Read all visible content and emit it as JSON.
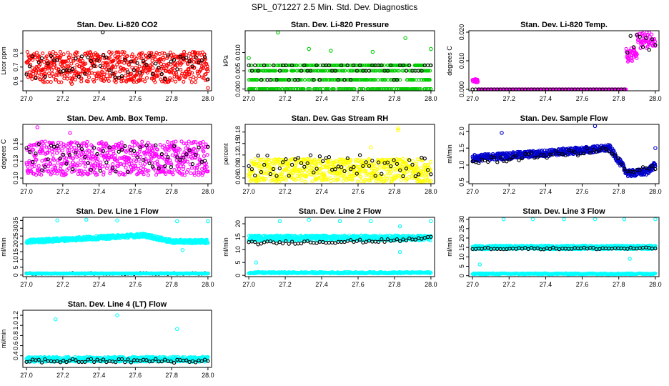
{
  "title": "SPL_071227  2.5 Min. Std. Dev. Diagnostics",
  "x_ticks": [
    "27.0",
    "27.2",
    "27.4",
    "27.6",
    "27.8",
    "28.0"
  ],
  "chart_data": [
    {
      "type": "scatter",
      "title": "Stan. Dev. Li-820 CO2",
      "ylabel": "Licor ppm",
      "xlim": [
        26.98,
        28.02
      ],
      "ylim": [
        0.53,
        0.96
      ],
      "yticks": [
        0.6,
        0.7,
        0.8
      ],
      "ytick_labels": [
        "0.6",
        "0.7",
        "0.8"
      ],
      "color": "#ff0000",
      "series": [
        {
          "name": "main",
          "model": {
            "type": "noise",
            "base": 0.7,
            "amp": 0.11,
            "n": 640
          }
        },
        {
          "name": "black",
          "model": {
            "type": "noise",
            "base": 0.7,
            "amp": 0.09,
            "n": 60
          }
        }
      ],
      "outliers": [
        [
          27.42,
          0.95
        ],
        [
          27.25,
          0.58
        ],
        [
          28.0,
          0.55
        ]
      ]
    },
    {
      "type": "scatter",
      "title": "Stan. Dev. Li-820 Pressure",
      "ylabel": "kPa",
      "xlim": [
        26.98,
        28.02
      ],
      "ylim": [
        -0.0005,
        0.016
      ],
      "yticks": [
        0.0,
        0.005,
        0.01
      ],
      "ytick_labels": [
        "0.000",
        "0.005",
        "0.010"
      ],
      "color": "#00cc00",
      "series": [
        {
          "name": "main",
          "model": {
            "type": "levels",
            "levels": [
              0.0,
              0.0025,
              0.005,
              0.0065
            ],
            "n": 640
          }
        },
        {
          "name": "black",
          "model": {
            "type": "levels",
            "levels": [
              0.0025,
              0.005,
              0.0065
            ],
            "n": 60
          }
        }
      ],
      "outliers": [
        [
          27.16,
          0.0155
        ],
        [
          27.33,
          0.011
        ],
        [
          27.45,
          0.0105
        ],
        [
          27.68,
          0.0102
        ],
        [
          27.86,
          0.014
        ],
        [
          28.0,
          0.011
        ],
        [
          27.0,
          0.0085
        ]
      ]
    },
    {
      "type": "scatter",
      "title": "Stan. Dev. Li-820 Temp.",
      "ylabel": "degrees C",
      "xlim": [
        26.98,
        28.02
      ],
      "ylim": [
        -0.0005,
        0.0205
      ],
      "yticks": [
        0.0,
        0.01,
        0.02
      ],
      "ytick_labels": [
        "0.000",
        "0.010",
        "0.020"
      ],
      "color": "#ff00ff",
      "series": [
        {
          "name": "main",
          "model": {
            "type": "step",
            "breaks": [
              [
                27.0,
                27.03,
                0.003
              ],
              [
                27.03,
                27.84,
                0.0
              ],
              [
                27.84,
                27.9,
                0.012
              ],
              [
                27.9,
                28.0,
                0.018
              ]
            ],
            "n": 640
          }
        },
        {
          "name": "black",
          "model": {
            "type": "step",
            "breaks": [
              [
                27.0,
                27.84,
                0.0
              ],
              [
                27.84,
                28.0,
                0.016
              ]
            ],
            "n": 60
          }
        }
      ],
      "outliers": []
    },
    {
      "type": "scatter",
      "title": "Stan. Dev. Amb. Box Temp.",
      "ylabel": "degrees C",
      "xlim": [
        26.98,
        28.02
      ],
      "ylim": [
        0.09,
        0.195
      ],
      "yticks": [
        0.1,
        0.13,
        0.16
      ],
      "ytick_labels": [
        "0.10",
        "0.13",
        "0.16"
      ],
      "color": "#ff00ff",
      "series": [
        {
          "name": "main",
          "model": {
            "type": "noise",
            "base": 0.135,
            "amp": 0.03,
            "n": 640
          }
        },
        {
          "name": "black",
          "model": {
            "type": "noise",
            "base": 0.135,
            "amp": 0.025,
            "n": 60
          }
        }
      ],
      "outliers": [
        [
          27.06,
          0.19
        ],
        [
          27.24,
          0.18
        ]
      ]
    },
    {
      "type": "scatter",
      "title": "Stan. Dev. Gas Stream RH",
      "ylabel": "percent",
      "xlim": [
        26.98,
        28.02
      ],
      "ylim": [
        0.045,
        0.2
      ],
      "yticks": [
        0.06,
        0.09,
        0.12,
        0.15,
        0.18
      ],
      "ytick_labels": [
        "0.06",
        "0.09",
        "0.12",
        "0.15",
        "0.18"
      ],
      "color": "#ffff00",
      "series": [
        {
          "name": "main",
          "model": {
            "type": "noise",
            "base": 0.08,
            "amp": 0.03,
            "n": 640
          }
        },
        {
          "name": "black",
          "model": {
            "type": "noise",
            "base": 0.09,
            "amp": 0.03,
            "n": 60
          }
        }
      ],
      "outliers": [
        [
          27.82,
          0.19
        ],
        [
          27.82,
          0.185
        ],
        [
          27.67,
          0.14
        ]
      ]
    },
    {
      "type": "scatter",
      "title": "Stan. Dev. Sample Flow",
      "ylabel": "ml/min",
      "xlim": [
        26.98,
        28.02
      ],
      "ylim": [
        0.45,
        2.2
      ],
      "yticks": [
        0.5,
        1.0,
        1.5,
        2.0
      ],
      "ytick_labels": [
        "0.5",
        "1.0",
        "1.5",
        "2.0"
      ],
      "color": "#0000cc",
      "series": [
        {
          "name": "main",
          "model": {
            "type": "trend",
            "points": [
              [
                27.0,
                1.2
              ],
              [
                27.4,
                1.35
              ],
              [
                27.75,
                1.5
              ],
              [
                27.85,
                0.75
              ],
              [
                27.95,
                0.8
              ],
              [
                28.0,
                1.0
              ]
            ],
            "amp": 0.1,
            "n": 640
          }
        },
        {
          "name": "black",
          "model": {
            "type": "trend",
            "points": [
              [
                27.0,
                1.1
              ],
              [
                27.4,
                1.3
              ],
              [
                27.75,
                1.45
              ],
              [
                27.85,
                0.75
              ],
              [
                28.0,
                0.95
              ]
            ],
            "amp": 0.1,
            "n": 60
          }
        }
      ],
      "outliers": [
        [
          27.16,
          1.95
        ],
        [
          27.67,
          2.15
        ],
        [
          28.0,
          1.5
        ]
      ]
    },
    {
      "type": "scatter",
      "title": "Stan. Dev. Line 1 Flow",
      "ylabel": "ml/min",
      "xlim": [
        26.98,
        28.02
      ],
      "ylim": [
        -1,
        37
      ],
      "yticks": [
        0,
        5,
        10,
        15,
        20,
        25,
        30,
        35
      ],
      "ytick_labels": [
        "0",
        "5",
        "10",
        "15",
        "20",
        "25",
        "30",
        "35"
      ],
      "color": "#00ffff",
      "series": [
        {
          "name": "main",
          "model": {
            "type": "trend",
            "points": [
              [
                27.0,
                21.5
              ],
              [
                27.65,
                25.5
              ],
              [
                27.8,
                21.5
              ],
              [
                28.0,
                21.5
              ]
            ],
            "amp": 1.2,
            "n": 640
          }
        },
        {
          "name": "black",
          "model": {
            "type": "noise",
            "base": 1.0,
            "amp": 0.3,
            "n": 60
          }
        },
        {
          "name": "cyan-low",
          "model": {
            "type": "noise",
            "base": 1.0,
            "amp": 0.2,
            "n": 300
          }
        }
      ],
      "outliers": [
        [
          27.17,
          35
        ],
        [
          27.33,
          35.5
        ],
        [
          27.5,
          35
        ],
        [
          27.83,
          34.5
        ],
        [
          28.0,
          34.5
        ],
        [
          27.86,
          16
        ]
      ]
    },
    {
      "type": "scatter",
      "title": "Stan. Dev. Line 2 Flow",
      "ylabel": "ml/min",
      "xlim": [
        26.98,
        28.02
      ],
      "ylim": [
        -0.5,
        22.5
      ],
      "yticks": [
        0,
        5,
        10,
        15,
        20
      ],
      "ytick_labels": [
        "0",
        "5",
        "10",
        "15",
        "20"
      ],
      "color": "#00ffff",
      "series": [
        {
          "name": "main",
          "model": {
            "type": "noise",
            "base": 14.5,
            "amp": 1.0,
            "n": 640
          }
        },
        {
          "name": "black",
          "model": {
            "type": "trend",
            "points": [
              [
                27.0,
                12.5
              ],
              [
                27.8,
                13.5
              ],
              [
                28.0,
                14.5
              ]
            ],
            "amp": 0.6,
            "n": 60
          }
        },
        {
          "name": "cyan-low",
          "model": {
            "type": "noise",
            "base": 1.0,
            "amp": 0.3,
            "n": 300
          }
        }
      ],
      "outliers": [
        [
          27.17,
          21
        ],
        [
          27.33,
          21.5
        ],
        [
          27.5,
          21
        ],
        [
          27.67,
          21
        ],
        [
          27.83,
          19
        ],
        [
          28.0,
          21
        ],
        [
          27.04,
          5
        ],
        [
          27.83,
          9
        ]
      ]
    },
    {
      "type": "scatter",
      "title": "Stan. Dev. Line 3 Flow",
      "ylabel": "ml/min",
      "xlim": [
        26.98,
        28.02
      ],
      "ylim": [
        -0.5,
        31
      ],
      "yticks": [
        0,
        5,
        10,
        15,
        20,
        25,
        30
      ],
      "ytick_labels": [
        "0",
        "5",
        "10",
        "15",
        "20",
        "25",
        "30"
      ],
      "color": "#00ffff",
      "series": [
        {
          "name": "main",
          "model": {
            "type": "noise",
            "base": 15.0,
            "amp": 1.0,
            "n": 640
          }
        },
        {
          "name": "black",
          "model": {
            "type": "noise",
            "base": 14.5,
            "amp": 0.5,
            "n": 60
          }
        },
        {
          "name": "cyan-low",
          "model": {
            "type": "noise",
            "base": 1.0,
            "amp": 0.3,
            "n": 300
          }
        }
      ],
      "outliers": [
        [
          27.17,
          30
        ],
        [
          27.33,
          30
        ],
        [
          27.5,
          30
        ],
        [
          27.67,
          30
        ],
        [
          27.83,
          30
        ],
        [
          28.0,
          30
        ],
        [
          27.04,
          6
        ],
        [
          27.86,
          9
        ]
      ]
    },
    {
      "type": "scatter",
      "title": "Stan. Dev. Line 4 (LT) Flow",
      "ylabel": "ml/min",
      "xlim": [
        26.98,
        28.02
      ],
      "ylim": [
        0.17,
        1.3
      ],
      "yticks": [
        0.4,
        0.6,
        0.8,
        1.0,
        1.2
      ],
      "ytick_labels": [
        "0.4",
        "0.6",
        "0.8",
        "1.0",
        "1.2"
      ],
      "color": "#00ffff",
      "series": [
        {
          "name": "main",
          "model": {
            "type": "noise",
            "base": 0.33,
            "amp": 0.05,
            "n": 640
          }
        },
        {
          "name": "black",
          "model": {
            "type": "noise",
            "base": 0.3,
            "amp": 0.04,
            "n": 60
          }
        }
      ],
      "outliers": [
        [
          27.16,
          1.12
        ],
        [
          27.5,
          1.2
        ],
        [
          27.83,
          0.93
        ]
      ]
    }
  ]
}
